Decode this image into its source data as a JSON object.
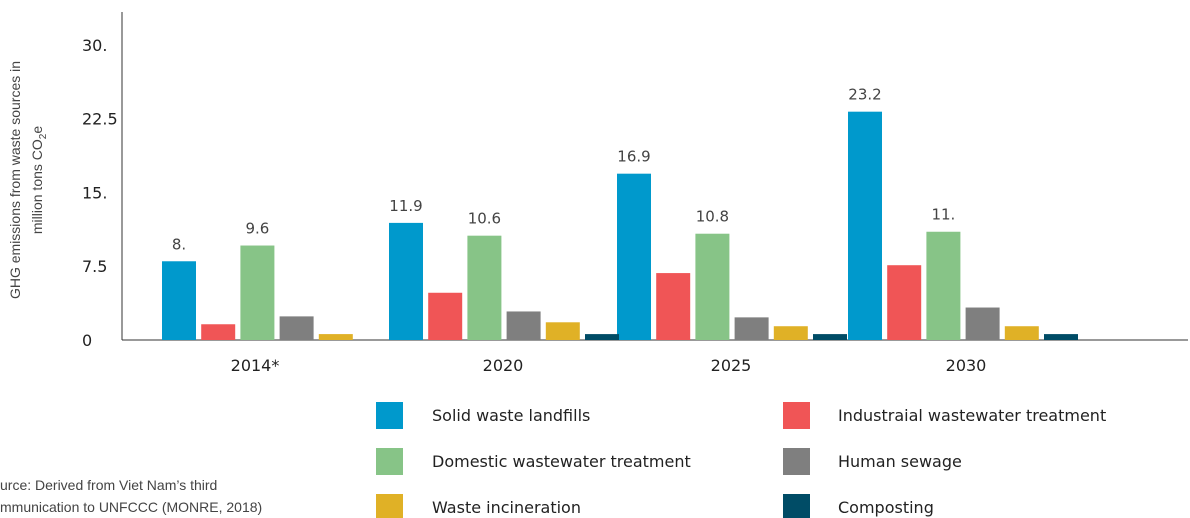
{
  "chart_data": {
    "type": "bar",
    "ylabel": "GHG emissions from waste sources in million tons CO2e",
    "ylabel_line1": "GHG emissions from waste sources in",
    "ylabel_line2_main": "million tons CO",
    "ylabel_line2_sub": "2",
    "ylabel_line2_end": "e",
    "ylim": [
      0,
      32
    ],
    "yticks": [
      {
        "value": 0,
        "label": "0"
      },
      {
        "value": 7.5,
        "label": "7.5"
      },
      {
        "value": 15,
        "label": "15."
      },
      {
        "value": 22.5,
        "label": "22.5"
      },
      {
        "value": 30,
        "label": "30."
      }
    ],
    "categories": [
      "2014*",
      "2020",
      "2025",
      "2030"
    ],
    "series": [
      {
        "name": "Solid waste landfills",
        "color": "#0099cc",
        "values": [
          8.0,
          11.9,
          16.9,
          23.2
        ],
        "labels": [
          "8.",
          "11.9",
          "16.9",
          "23.2"
        ]
      },
      {
        "name": "Industraial wastewater treatment",
        "color": "#f05556",
        "values": [
          1.6,
          4.8,
          6.8,
          7.6
        ],
        "labels": []
      },
      {
        "name": "Domestic wastewater treatment",
        "color": "#87c487",
        "values": [
          9.6,
          10.6,
          10.8,
          11.0
        ],
        "labels": [
          "9.6",
          "10.6",
          "10.8",
          "11."
        ]
      },
      {
        "name": "Human sewage",
        "color": "#7f7f7f",
        "values": [
          2.4,
          2.9,
          2.3,
          3.3
        ],
        "labels": []
      },
      {
        "name": "Waste incineration",
        "color": "#e0b126",
        "values": [
          0.6,
          1.8,
          1.4,
          1.4
        ],
        "labels": []
      },
      {
        "name": "Composting",
        "color": "#004c66",
        "values": [
          0.0,
          0.6,
          0.6,
          0.6
        ],
        "labels": []
      }
    ],
    "legend_placement": "bottom-right",
    "grid": false
  },
  "source": {
    "line1": "urce: Derived from Viet Nam’s third",
    "line2": "mmunication to UNFCCC (MONRE, 2018)"
  }
}
